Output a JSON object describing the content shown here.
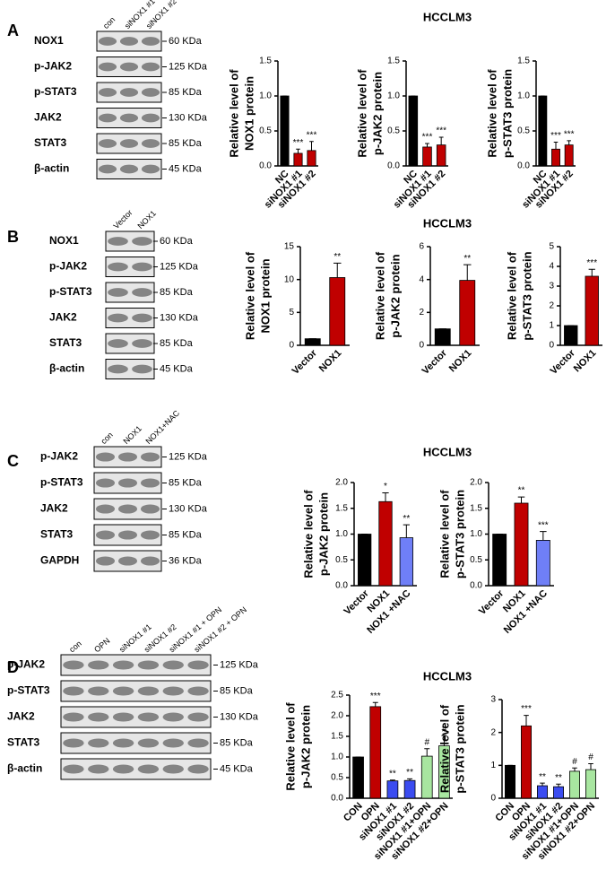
{
  "blots": [
    {
      "letter": "A",
      "heading": "HCCLM3",
      "lanes": [
        "con",
        "siNOX1 #1",
        "siNOX1 #2"
      ],
      "rows": [
        {
          "protein": "NOX1",
          "size": "60 KDa"
        },
        {
          "protein": "p-JAK2",
          "size": "125 KDa"
        },
        {
          "protein": "p-STAT3",
          "size": "85 KDa"
        },
        {
          "protein": "JAK2",
          "size": "130 KDa"
        },
        {
          "protein": "STAT3",
          "size": "85 KDa"
        },
        {
          "protein": "β-actin",
          "size": "45 KDa"
        }
      ]
    },
    {
      "letter": "B",
      "heading": "HCCLM3",
      "lanes": [
        "Vector",
        "NOX1"
      ],
      "rows": [
        {
          "protein": "NOX1",
          "size": "60 KDa"
        },
        {
          "protein": "p-JAK2",
          "size": "125 KDa"
        },
        {
          "protein": "p-STAT3",
          "size": "85 KDa"
        },
        {
          "protein": "JAK2",
          "size": "130 KDa"
        },
        {
          "protein": "STAT3",
          "size": "85 KDa"
        },
        {
          "protein": "β-actin",
          "size": "45 KDa"
        }
      ]
    },
    {
      "letter": "C",
      "heading": "HCCLM3",
      "lanes": [
        "con",
        "NOX1",
        "NOX1+NAC"
      ],
      "rows": [
        {
          "protein": "p-JAK2",
          "size": "125 KDa"
        },
        {
          "protein": "p-STAT3",
          "size": "85 KDa"
        },
        {
          "protein": "JAK2",
          "size": "130 KDa"
        },
        {
          "protein": "STAT3",
          "size": "85 KDa"
        },
        {
          "protein": "GAPDH",
          "size": "36 KDa"
        }
      ]
    },
    {
      "letter": "D",
      "heading": "HCCLM3",
      "lanes": [
        "con",
        "OPN",
        "siNOX1 #1",
        "siNOX1 #2",
        "siNOX1 #1 + OPN",
        "siNOX1 #2 + OPN"
      ],
      "rows": [
        {
          "protein": "p-JAK2",
          "size": "125 KDa"
        },
        {
          "protein": "p-STAT3",
          "size": "85 KDa"
        },
        {
          "protein": "JAK2",
          "size": "130 KDa"
        },
        {
          "protein": "STAT3",
          "size": "85 KDa"
        },
        {
          "protein": "β-actin",
          "size": "45 KDa"
        }
      ]
    }
  ],
  "chart_data": [
    {
      "type": "bar",
      "ylabel": [
        "Relative level of",
        "NOX1 protein"
      ],
      "categories": [
        "NC",
        "siNOX1 #1",
        "siNOX1 #2"
      ],
      "values": [
        1,
        0.18,
        0.22
      ],
      "errors": [
        0,
        0.06,
        0.13
      ],
      "stars": [
        null,
        "***",
        "***"
      ],
      "colors": [
        "#000000",
        "#c00000",
        "#c00000"
      ],
      "ylim": [
        0,
        1.5
      ],
      "yticks": [
        {
          "value": 0,
          "label": "0.0"
        },
        0.5,
        {
          "value": 1,
          "label": "1.0"
        },
        1.5
      ]
    },
    {
      "type": "bar",
      "ylabel": [
        "Relative level of",
        "p-JAK2 protein"
      ],
      "categories": [
        "NC",
        "siNOX1 #1",
        "siNOX1 #2"
      ],
      "values": [
        1,
        0.27,
        0.3
      ],
      "errors": [
        0,
        0.05,
        0.11
      ],
      "stars": [
        null,
        "***",
        "***"
      ],
      "colors": [
        "#000000",
        "#c00000",
        "#c00000"
      ],
      "ylim": [
        0,
        1.5
      ],
      "yticks": [
        {
          "value": 0,
          "label": "0.0"
        },
        0.5,
        {
          "value": 1,
          "label": "1.0"
        },
        1.5
      ]
    },
    {
      "type": "bar",
      "ylabel": [
        "Relative level of",
        "p-STAT3 protein"
      ],
      "categories": [
        "NC",
        "siNOX1 #1",
        "siNOX1 #2"
      ],
      "values": [
        1,
        0.24,
        0.3
      ],
      "errors": [
        0,
        0.1,
        0.06
      ],
      "stars": [
        null,
        "***",
        "***"
      ],
      "colors": [
        "#000000",
        "#c00000",
        "#c00000"
      ],
      "ylim": [
        0,
        1.5
      ],
      "yticks": [
        {
          "value": 0,
          "label": "0.0"
        },
        0.5,
        {
          "value": 1,
          "label": "1.0"
        },
        1.5
      ]
    },
    {
      "type": "bar",
      "ylabel": [
        "Relative level of",
        "NOX1 protein"
      ],
      "categories": [
        "Vector",
        "NOX1"
      ],
      "values": [
        1,
        10.3
      ],
      "errors": [
        0,
        2.2
      ],
      "stars": [
        null,
        "**"
      ],
      "colors": [
        "#000000",
        "#c00000"
      ],
      "ylim": [
        0,
        15
      ],
      "yticks": [
        0,
        5,
        10,
        15
      ]
    },
    {
      "type": "bar",
      "ylabel": [
        "Relative level of",
        "p-JAK2 protein"
      ],
      "categories": [
        "Vector",
        "NOX1"
      ],
      "values": [
        1,
        3.95
      ],
      "errors": [
        0,
        0.95
      ],
      "stars": [
        null,
        "**"
      ],
      "colors": [
        "#000000",
        "#c00000"
      ],
      "ylim": [
        0,
        6
      ],
      "yticks": [
        0,
        2,
        4,
        6
      ]
    },
    {
      "type": "bar",
      "ylabel": [
        "Relative level of",
        "p-STAT3 protein"
      ],
      "categories": [
        "Vector",
        "NOX1"
      ],
      "values": [
        1,
        3.5
      ],
      "errors": [
        0,
        0.35
      ],
      "stars": [
        null,
        "***"
      ],
      "colors": [
        "#000000",
        "#c00000"
      ],
      "ylim": [
        0,
        5
      ],
      "yticks": [
        0,
        1,
        2,
        3,
        4,
        5
      ]
    },
    {
      "type": "bar",
      "ylabel": [
        "Relative level of",
        "p-JAK2 protein"
      ],
      "categories": [
        "Vector",
        "NOX1",
        "NOX1 +NAC"
      ],
      "values": [
        1,
        1.63,
        0.93
      ],
      "errors": [
        0,
        0.17,
        0.25
      ],
      "stars": [
        null,
        "*",
        "**"
      ],
      "colors": [
        "#000000",
        "#c00000",
        "#6f7ff7"
      ],
      "ylim": [
        0,
        2
      ],
      "yticks": [
        {
          "value": 0,
          "label": "0.0"
        },
        0.5,
        {
          "value": 1,
          "label": "1.0"
        },
        1.5,
        {
          "value": 2,
          "label": "2.0"
        }
      ]
    },
    {
      "type": "bar",
      "ylabel": [
        "Relative level of",
        "p-STAT3 protein"
      ],
      "categories": [
        "Vector",
        "NOX1",
        "NOX1 +NAC"
      ],
      "values": [
        1,
        1.6,
        0.88
      ],
      "errors": [
        0,
        0.12,
        0.17
      ],
      "stars": [
        null,
        "**",
        "***"
      ],
      "colors": [
        "#000000",
        "#c00000",
        "#6f7ff7"
      ],
      "ylim": [
        0,
        2
      ],
      "yticks": [
        {
          "value": 0,
          "label": "0.0"
        },
        0.5,
        {
          "value": 1,
          "label": "1.0"
        },
        1.5,
        {
          "value": 2,
          "label": "2.0"
        }
      ]
    },
    {
      "type": "bar",
      "ylabel": [
        "Relative level of",
        "p-JAK2 protein"
      ],
      "categories": [
        "CON",
        "OPN",
        "siNOX1 #1",
        "siNOX1 #2",
        "siNOX1 #1+OPN",
        "siNOX1 #2+OPN"
      ],
      "values": [
        1,
        2.22,
        0.42,
        0.43,
        1.02,
        1.27
      ],
      "errors": [
        0,
        0.1,
        0.02,
        0.04,
        0.18,
        0.25
      ],
      "stars": [
        null,
        "***",
        "**",
        "**",
        "#",
        "#"
      ],
      "colors": [
        "#000000",
        "#c00000",
        "#3b4cf0",
        "#3b4cf0",
        "#a8e6a0",
        "#a8e6a0"
      ],
      "ylim": [
        0,
        2.5
      ],
      "yticks": [
        {
          "value": 0,
          "label": "0.0"
        },
        0.5,
        {
          "value": 1,
          "label": "1.0"
        },
        1.5,
        {
          "value": 2,
          "label": "2.0"
        },
        2.5
      ]
    },
    {
      "type": "bar",
      "ylabel": [
        "Relative level of",
        "p-STAT3 protein"
      ],
      "categories": [
        "CON",
        "OPN",
        "siNOX1 #1",
        "siNOX1 #2",
        "siNOX1 #1+OPN",
        "siNOX1 #2+OPN"
      ],
      "values": [
        1,
        2.2,
        0.38,
        0.35,
        0.82,
        0.87
      ],
      "errors": [
        0,
        0.32,
        0.08,
        0.08,
        0.1,
        0.18
      ],
      "stars": [
        null,
        "***",
        "**",
        "**",
        "#",
        "#"
      ],
      "colors": [
        "#000000",
        "#c00000",
        "#3b4cf0",
        "#3b4cf0",
        "#a8e6a0",
        "#a8e6a0"
      ],
      "ylim": [
        0,
        3
      ],
      "yticks": [
        0,
        1,
        2,
        3
      ]
    }
  ]
}
